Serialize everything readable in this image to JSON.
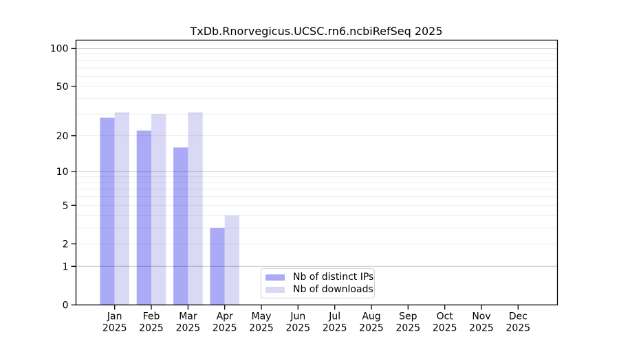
{
  "chart_data": {
    "type": "bar",
    "title": "TxDb.Rnorvegicus.UCSC.rn6.ncbiRefSeq 2025",
    "categories": [
      "Jan",
      "Feb",
      "Mar",
      "Apr",
      "May",
      "Jun",
      "Jul",
      "Aug",
      "Sep",
      "Oct",
      "Nov",
      "Dec"
    ],
    "year_label": "2025",
    "series": [
      {
        "name": "Nb of distinct IPs",
        "color": "#aaaaf6",
        "values": [
          28,
          22,
          16,
          3,
          0,
          0,
          0,
          0,
          0,
          0,
          0,
          0
        ]
      },
      {
        "name": "Nb of downloads",
        "color": "#d9d9f6",
        "values": [
          31,
          30,
          31,
          4,
          0,
          0,
          0,
          0,
          0,
          0,
          0,
          0
        ]
      }
    ],
    "xlabel": "",
    "ylabel": "",
    "y_scale": "log10(value+1)",
    "ylim": [
      0,
      117
    ],
    "y_ticks": [
      0,
      1,
      2,
      5,
      10,
      20,
      50,
      100
    ],
    "y_major_gridlines": [
      1,
      10,
      100
    ],
    "y_minor_gridlines": [
      2,
      3,
      4,
      5,
      6,
      7,
      8,
      9,
      20,
      30,
      40,
      50,
      60,
      70,
      80,
      90,
      110
    ],
    "grid": true,
    "legend_position": "lower center"
  }
}
